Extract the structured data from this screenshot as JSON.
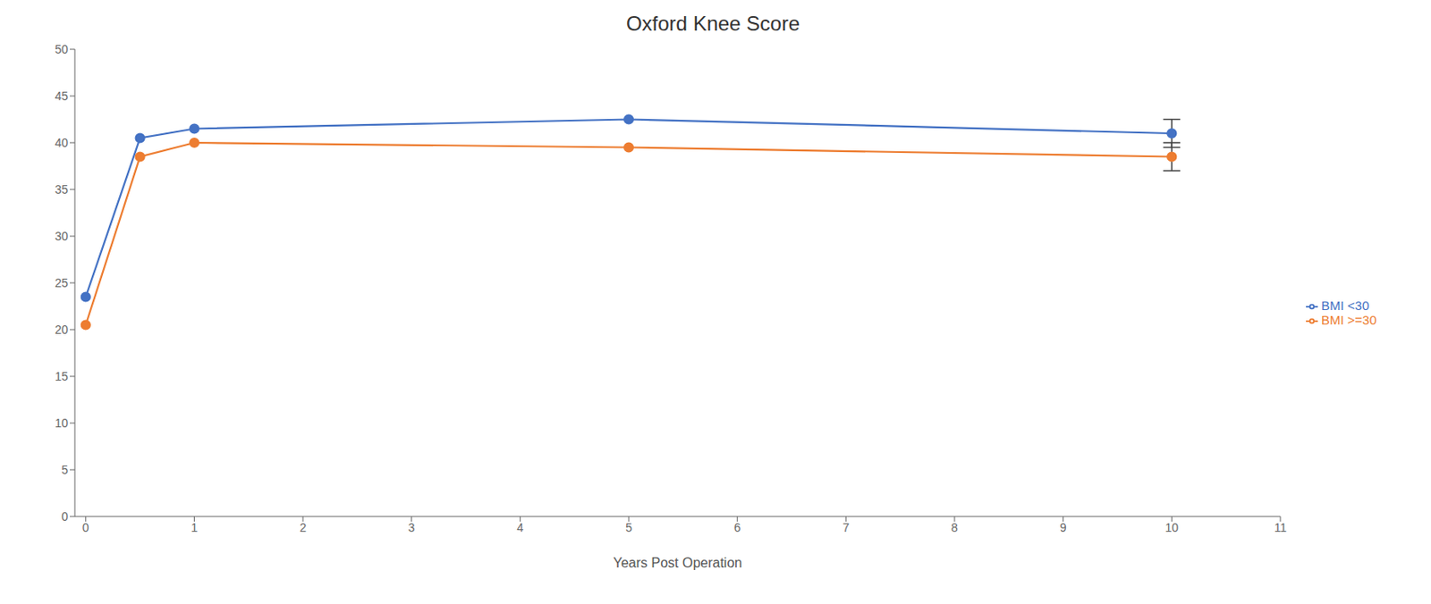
{
  "chart_data": {
    "type": "line",
    "title": "Oxford Knee Score",
    "xlabel": "Years Post Operation",
    "x": [
      0,
      0.5,
      1,
      5,
      10
    ],
    "series": [
      {
        "name": "BMI <30",
        "color": "#4472C4",
        "values": [
          23.5,
          40.5,
          41.5,
          42.5,
          41.0
        ],
        "yerr": [
          null,
          null,
          null,
          null,
          1.5
        ]
      },
      {
        "name": "BMI >=30",
        "color": "#ED7D31",
        "values": [
          20.5,
          38.5,
          40.0,
          39.5,
          38.5
        ],
        "yerr": [
          null,
          null,
          null,
          null,
          1.5
        ]
      }
    ],
    "xlim": [
      -0.1,
      11
    ],
    "ylim": [
      0,
      50
    ],
    "xticks": [
      0,
      1,
      2,
      3,
      4,
      5,
      6,
      7,
      8,
      9,
      10,
      11
    ],
    "yticks": [
      0,
      5,
      10,
      15,
      20,
      25,
      30,
      35,
      40,
      45,
      50
    ],
    "grid": false,
    "legend": "right",
    "marker": "circle"
  }
}
